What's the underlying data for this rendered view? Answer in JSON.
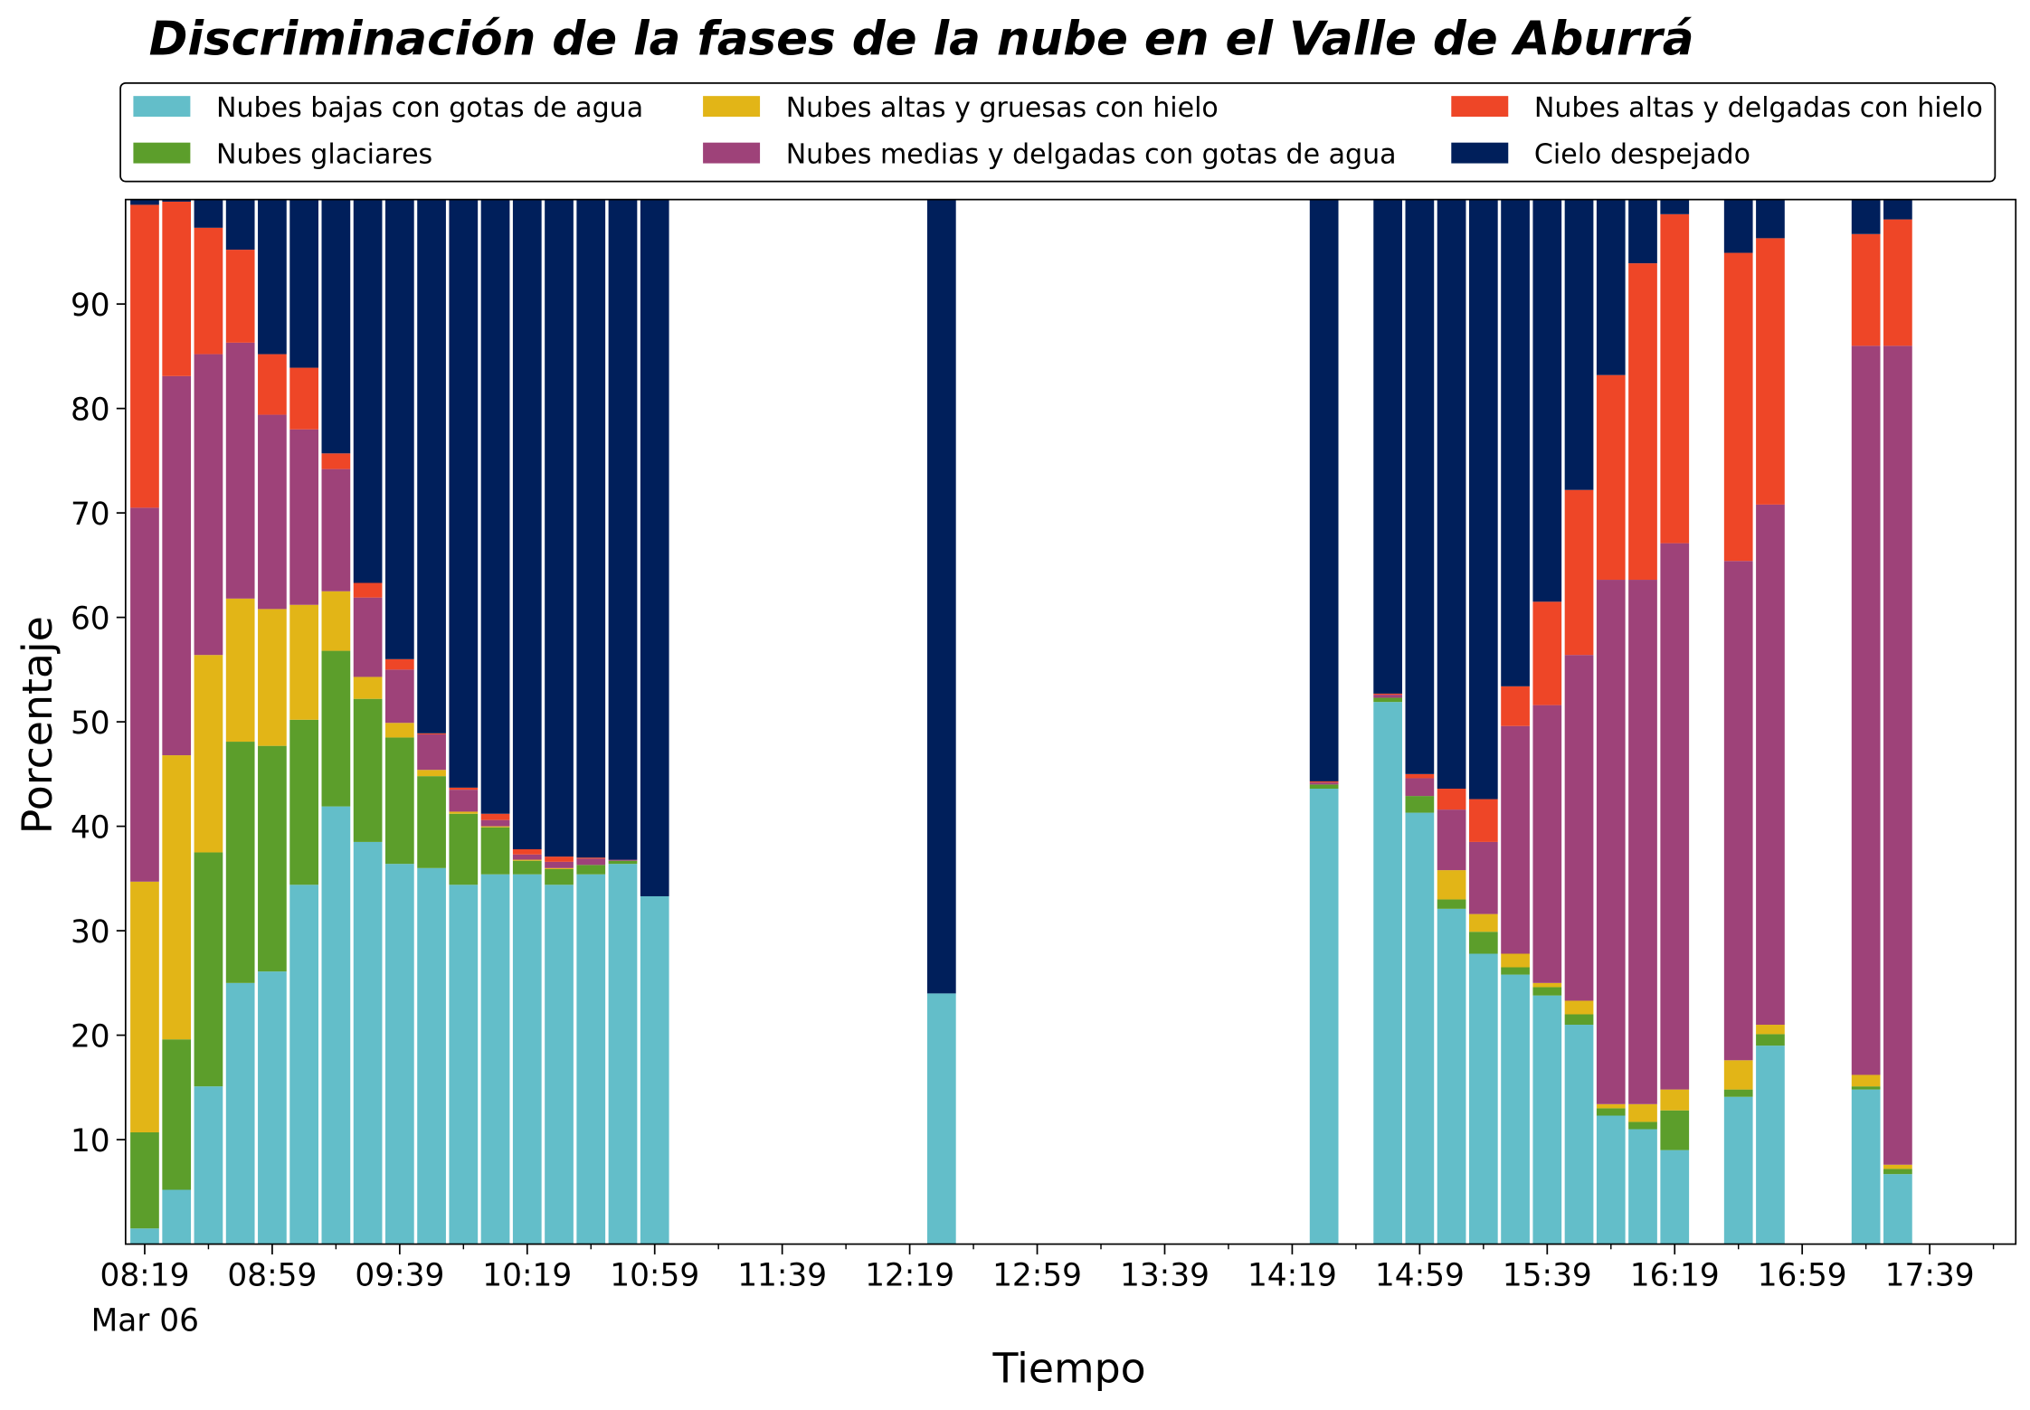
{
  "chart_data": {
    "type": "bar",
    "stacked": true,
    "title": "Discriminación de la fases de la nube en el Valle de Aburrá",
    "x_label": "Tiempo",
    "y_label": "Porcentaje",
    "x_date_label": "Mar 06",
    "x": [
      "08:19",
      "08:29",
      "08:39",
      "08:49",
      "08:59",
      "09:09",
      "09:19",
      "09:29",
      "09:39",
      "09:49",
      "09:59",
      "10:09",
      "10:19",
      "10:29",
      "10:39",
      "10:49",
      "10:59",
      "12:29",
      "14:29",
      "14:49",
      "14:59",
      "15:09",
      "15:19",
      "15:29",
      "15:39",
      "15:49",
      "15:59",
      "16:09",
      "16:19",
      "16:39",
      "16:49",
      "17:19",
      "17:29"
    ],
    "xlim": [
      "08:13",
      "18:06"
    ],
    "xticks": [
      "08:19",
      "08:59",
      "09:39",
      "10:19",
      "10:59",
      "11:39",
      "12:19",
      "12:59",
      "13:39",
      "14:19",
      "14:59",
      "15:39",
      "16:19",
      "16:59",
      "17:39"
    ],
    "xticks_minor": [
      "08:39",
      "09:19",
      "09:59",
      "10:39",
      "11:19",
      "11:59",
      "12:39",
      "13:19",
      "13:59",
      "14:39",
      "15:19",
      "15:59",
      "16:39",
      "17:19",
      "17:59"
    ],
    "ylim": [
      0,
      100
    ],
    "yticks": [
      10,
      20,
      30,
      40,
      50,
      60,
      70,
      80,
      90
    ],
    "legend": "upper center outside",
    "legend_columns": 3,
    "series": [
      {
        "name": "Nubes bajas con gotas de agua",
        "color": "#63bec9",
        "values": [
          1.5,
          5.2,
          15.1,
          25,
          26.1,
          34.4,
          41.9,
          38.5,
          36.4,
          36,
          34.4,
          35.4,
          35.4,
          34.4,
          35.4,
          36.4,
          33.3,
          24,
          43.6,
          51.9,
          41.3,
          32.1,
          27.8,
          25.8,
          23.8,
          21,
          12.3,
          11,
          9,
          14.1,
          19,
          14.8,
          6.7
        ]
      },
      {
        "name": "Nubes glaciares",
        "color": "#5c9e2b",
        "values": [
          9.2,
          14.4,
          22.4,
          23.1,
          21.6,
          15.8,
          14.9,
          13.7,
          12.1,
          8.8,
          6.8,
          4.5,
          1.3,
          1.5,
          0.9,
          0.3,
          0,
          0,
          0.4,
          0.4,
          1.6,
          0.9,
          2.1,
          0.7,
          0.8,
          1,
          0.7,
          0.7,
          3.8,
          0.7,
          1.1,
          0.3,
          0.5
        ]
      },
      {
        "name": "Nubes altas y gruesas con hielo",
        "color": "#e2b517",
        "values": [
          24,
          27.2,
          18.9,
          13.7,
          13.1,
          11,
          5.7,
          2.1,
          1.4,
          0.6,
          0.2,
          0.1,
          0.1,
          0.1,
          0,
          0,
          0,
          0,
          0,
          0,
          0,
          2.8,
          1.7,
          1.3,
          0.4,
          1.3,
          0.4,
          1.7,
          2,
          2.8,
          0.9,
          1.1,
          0.4
        ]
      },
      {
        "name": "Nubes medias y delgadas con gotas de agua",
        "color": "#9e4279",
        "values": [
          35.8,
          36.3,
          28.8,
          24.5,
          18.6,
          16.8,
          11.7,
          7.6,
          5.1,
          3.4,
          2.1,
          0.6,
          0.5,
          0.6,
          0.6,
          0.1,
          0,
          0,
          0.2,
          0.3,
          1.7,
          5.8,
          6.9,
          21.8,
          26.6,
          33.1,
          50.2,
          50.2,
          52.3,
          47.8,
          49.8,
          69.8,
          78.4
        ]
      },
      {
        "name": "Nubes altas y delgadas con hielo",
        "color": "#ee4627",
        "values": [
          29,
          16.7,
          12.1,
          8.9,
          5.8,
          5.9,
          1.5,
          1.4,
          1,
          0.1,
          0.2,
          0.6,
          0.5,
          0.5,
          0.1,
          0,
          0,
          0,
          0.1,
          0.1,
          0.4,
          2,
          4.1,
          3.8,
          9.9,
          15.8,
          19.6,
          30.3,
          31.5,
          29.5,
          25.5,
          10.7,
          12.1
        ]
      },
      {
        "name": "Cielo despejado",
        "color": "#001f5b",
        "values": [
          0.5,
          0.2,
          2.7,
          4.8,
          14.8,
          16.1,
          24.3,
          36.7,
          44,
          51.1,
          56.3,
          58.8,
          62.2,
          62.9,
          63,
          63.2,
          66.7,
          76,
          55.7,
          47.3,
          55,
          56.4,
          57.4,
          46.6,
          38.5,
          27.8,
          16.8,
          6.1,
          1.4,
          5.1,
          3.7,
          3.3,
          1.9
        ]
      }
    ]
  }
}
